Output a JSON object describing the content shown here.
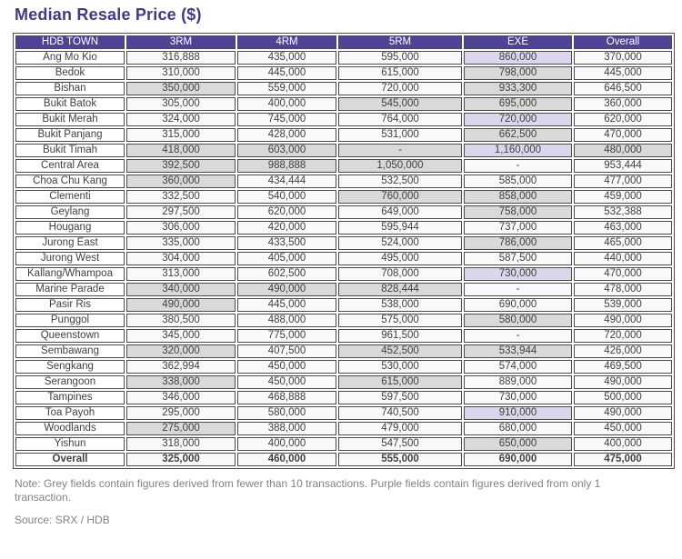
{
  "title": "Median Resale Price ($)",
  "note": "Note: Grey fields contain figures derived from fewer than 10 transactions. Purple fields contain figures derived from only 1 transaction.",
  "source": "Source: SRX / HDB",
  "colors": {
    "header_bg": "#4e4496",
    "title": "#453982",
    "grey_cell": "#d9d9d9",
    "purple_cell": "#dbd6ec",
    "normal_cell": "#f9f9f9",
    "border": "#4a4a4c",
    "muted_text": "#808285"
  },
  "legend": {
    "grey_meaning": "derived from fewer than 10 transactions",
    "purple_meaning": "derived from only 1 transaction"
  },
  "chart_data": {
    "type": "table",
    "title": "Median Resale Price ($)",
    "columns": [
      "HDB TOWN",
      "3RM",
      "4RM",
      "5RM",
      "EXE",
      "Overall"
    ],
    "shading_key": {
      "w": "white",
      "g": "grey (<10 transactions)",
      "p": "purple (1 transaction)"
    },
    "rows": [
      {
        "town": "Ang Mo Kio",
        "values": [
          "316,888",
          "435,000",
          "595,000",
          "860,000",
          "370,000"
        ],
        "shading": [
          "w",
          "w",
          "w",
          "p",
          "w"
        ]
      },
      {
        "town": "Bedok",
        "values": [
          "310,000",
          "445,000",
          "615,000",
          "798,000",
          "445,000"
        ],
        "shading": [
          "w",
          "w",
          "w",
          "g",
          "w"
        ]
      },
      {
        "town": "Bishan",
        "values": [
          "350,000",
          "559,000",
          "720,000",
          "933,300",
          "646,500"
        ],
        "shading": [
          "g",
          "w",
          "w",
          "g",
          "w"
        ]
      },
      {
        "town": "Bukit Batok",
        "values": [
          "305,000",
          "400,000",
          "545,000",
          "695,000",
          "360,000"
        ],
        "shading": [
          "w",
          "w",
          "g",
          "g",
          "w"
        ]
      },
      {
        "town": "Bukit Merah",
        "values": [
          "324,000",
          "745,000",
          "764,000",
          "720,000",
          "620,000"
        ],
        "shading": [
          "w",
          "w",
          "w",
          "p",
          "w"
        ]
      },
      {
        "town": "Bukit Panjang",
        "values": [
          "315,000",
          "428,000",
          "531,000",
          "662,500",
          "470,000"
        ],
        "shading": [
          "w",
          "w",
          "w",
          "g",
          "w"
        ]
      },
      {
        "town": "Bukit Timah",
        "values": [
          "418,000",
          "603,000",
          "-",
          "1,160,000",
          "480,000"
        ],
        "shading": [
          "g",
          "g",
          "g",
          "p",
          "g"
        ]
      },
      {
        "town": "Central Area",
        "values": [
          "392,500",
          "988,888",
          "1,050,000",
          "-",
          "953,444"
        ],
        "shading": [
          "g",
          "g",
          "g",
          "w",
          "w"
        ]
      },
      {
        "town": "Choa Chu Kang",
        "values": [
          "360,000",
          "434,444",
          "532,500",
          "585,000",
          "477,000"
        ],
        "shading": [
          "g",
          "w",
          "w",
          "w",
          "w"
        ]
      },
      {
        "town": "Clementi",
        "values": [
          "332,500",
          "540,000",
          "760,000",
          "858,000",
          "459,000"
        ],
        "shading": [
          "w",
          "w",
          "g",
          "g",
          "w"
        ]
      },
      {
        "town": "Geylang",
        "values": [
          "297,500",
          "620,000",
          "649,000",
          "758,000",
          "532,388"
        ],
        "shading": [
          "w",
          "w",
          "w",
          "g",
          "w"
        ]
      },
      {
        "town": "Hougang",
        "values": [
          "306,000",
          "420,000",
          "595,944",
          "737,000",
          "463,000"
        ],
        "shading": [
          "w",
          "w",
          "w",
          "w",
          "w"
        ]
      },
      {
        "town": "Jurong East",
        "values": [
          "335,000",
          "433,500",
          "524,000",
          "786,000",
          "465,000"
        ],
        "shading": [
          "w",
          "w",
          "w",
          "g",
          "w"
        ]
      },
      {
        "town": "Jurong West",
        "values": [
          "304,000",
          "405,000",
          "495,000",
          "587,500",
          "440,000"
        ],
        "shading": [
          "w",
          "w",
          "w",
          "w",
          "w"
        ]
      },
      {
        "town": "Kallang/Whampoa",
        "values": [
          "313,000",
          "602,500",
          "708,000",
          "730,000",
          "470,000"
        ],
        "shading": [
          "w",
          "w",
          "w",
          "p",
          "w"
        ]
      },
      {
        "town": "Marine Parade",
        "values": [
          "340,000",
          "490,000",
          "828,444",
          "-",
          "478,000"
        ],
        "shading": [
          "g",
          "g",
          "g",
          "w",
          "w"
        ]
      },
      {
        "town": "Pasir Ris",
        "values": [
          "490,000",
          "445,000",
          "538,000",
          "690,000",
          "539,000"
        ],
        "shading": [
          "g",
          "w",
          "w",
          "w",
          "w"
        ]
      },
      {
        "town": "Punggol",
        "values": [
          "380,500",
          "488,000",
          "575,000",
          "580,000",
          "490,000"
        ],
        "shading": [
          "w",
          "w",
          "w",
          "g",
          "w"
        ]
      },
      {
        "town": "Queenstown",
        "values": [
          "345,000",
          "775,000",
          "961,500",
          "-",
          "720,000"
        ],
        "shading": [
          "w",
          "w",
          "w",
          "w",
          "w"
        ]
      },
      {
        "town": "Sembawang",
        "values": [
          "320,000",
          "407,500",
          "452,500",
          "533,944",
          "426,000"
        ],
        "shading": [
          "g",
          "w",
          "g",
          "g",
          "w"
        ]
      },
      {
        "town": "Sengkang",
        "values": [
          "362,994",
          "450,000",
          "530,000",
          "574,000",
          "469,500"
        ],
        "shading": [
          "w",
          "w",
          "w",
          "w",
          "w"
        ]
      },
      {
        "town": "Serangoon",
        "values": [
          "338,000",
          "450,000",
          "615,000",
          "889,000",
          "490,000"
        ],
        "shading": [
          "g",
          "w",
          "g",
          "w",
          "w"
        ]
      },
      {
        "town": "Tampines",
        "values": [
          "346,000",
          "468,888",
          "597,500",
          "730,000",
          "500,000"
        ],
        "shading": [
          "w",
          "w",
          "w",
          "w",
          "w"
        ]
      },
      {
        "town": "Toa Payoh",
        "values": [
          "295,000",
          "580,000",
          "740,500",
          "910,000",
          "490,000"
        ],
        "shading": [
          "w",
          "w",
          "w",
          "p",
          "w"
        ]
      },
      {
        "town": "Woodlands",
        "values": [
          "275,000",
          "388,000",
          "479,000",
          "680,000",
          "450,000"
        ],
        "shading": [
          "g",
          "w",
          "w",
          "w",
          "w"
        ]
      },
      {
        "town": "Yishun",
        "values": [
          "318,000",
          "400,000",
          "547,500",
          "650,000",
          "400,000"
        ],
        "shading": [
          "w",
          "w",
          "w",
          "g",
          "w"
        ]
      },
      {
        "town": "Overall",
        "values": [
          "325,000",
          "460,000",
          "555,000",
          "690,000",
          "475,000"
        ],
        "shading": [
          "w",
          "w",
          "w",
          "w",
          "w"
        ],
        "bold": true
      }
    ]
  }
}
